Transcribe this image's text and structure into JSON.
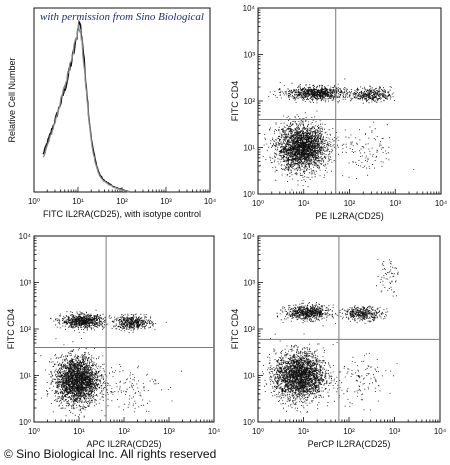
{
  "watermark": "with permission from Sino Biological",
  "footer": "© Sino Biological Inc. All rights reserved",
  "colors": {
    "axis": "#111111",
    "dots": "#111111",
    "histogram_sample": "#111111",
    "histogram_control": "#8a8a8a",
    "gate_lines": "#7a7a7a",
    "watermark": "#1d2f7a"
  },
  "chart_data": [
    {
      "type": "histogram",
      "xlabel": "FITC IL2RA(CD25), with isotype control",
      "ylabel": "Relative Cell Number",
      "xscale": "log",
      "xlim": [
        1,
        10000
      ],
      "x_ticks": [
        1,
        10,
        100,
        1000,
        10000
      ],
      "x_tick_labels": [
        "10⁰",
        "10¹",
        "10²",
        "10³",
        "10⁴"
      ],
      "series": [
        {
          "role": "sample",
          "x": [
            1.6,
            2.2,
            3,
            4,
            5.5,
            7,
            9,
            10,
            11,
            12.5,
            14,
            16,
            18,
            21,
            25,
            30,
            38,
            50,
            65,
            100,
            150
          ],
          "y": [
            0.22,
            0.32,
            0.42,
            0.52,
            0.64,
            0.76,
            0.88,
            0.97,
            1.0,
            0.9,
            0.75,
            0.58,
            0.42,
            0.28,
            0.18,
            0.11,
            0.07,
            0.05,
            0.03,
            0.015,
            0.0
          ]
        },
        {
          "role": "isotype control",
          "x": [
            1.6,
            2.2,
            3,
            4,
            5.5,
            7,
            9,
            10,
            11,
            12.5,
            14,
            16,
            18,
            21,
            25,
            30,
            38,
            50,
            65,
            100,
            150
          ],
          "y": [
            0.2,
            0.3,
            0.41,
            0.53,
            0.66,
            0.79,
            0.9,
            0.96,
            0.97,
            0.86,
            0.71,
            0.55,
            0.4,
            0.26,
            0.17,
            0.1,
            0.065,
            0.045,
            0.028,
            0.012,
            0.0
          ]
        }
      ]
    },
    {
      "type": "scatter",
      "xlabel": "PE IL2RA(CD25)",
      "ylabel": "FITC CD4",
      "xscale": "log",
      "yscale": "log",
      "xlim": [
        1,
        10000
      ],
      "ylim": [
        1,
        10000
      ],
      "tick_labels": [
        "10⁰",
        "10¹",
        "10²",
        "10³",
        "10⁴"
      ],
      "quadrant_gate": {
        "x": 50,
        "y": 40
      },
      "populations": [
        {
          "x_center": 9,
          "y_center": 10,
          "spread_log_x": 0.45,
          "spread_log_y": 0.4,
          "count": 2600
        },
        {
          "x_center": 18,
          "y_center": 150,
          "spread_log_x": 0.55,
          "spread_log_y": 0.12,
          "count": 900
        },
        {
          "x_center": 300,
          "y_center": 140,
          "spread_log_x": 0.35,
          "spread_log_y": 0.12,
          "count": 400
        },
        {
          "x_center": 200,
          "y_center": 8,
          "spread_log_x": 0.6,
          "spread_log_y": 0.45,
          "count": 120
        }
      ]
    },
    {
      "type": "scatter",
      "xlabel": "APC IL2RA(CD25)",
      "ylabel": "FITC CD4",
      "xscale": "log",
      "yscale": "log",
      "xlim": [
        1,
        10000
      ],
      "ylim": [
        1,
        10000
      ],
      "tick_labels": [
        "10⁰",
        "10¹",
        "10²",
        "10³",
        "10⁴"
      ],
      "quadrant_gate": {
        "x": 40,
        "y": 40
      },
      "populations": [
        {
          "x_center": 9,
          "y_center": 8,
          "spread_log_x": 0.4,
          "spread_log_y": 0.42,
          "count": 2600
        },
        {
          "x_center": 12,
          "y_center": 150,
          "spread_log_x": 0.4,
          "spread_log_y": 0.12,
          "count": 800
        },
        {
          "x_center": 150,
          "y_center": 140,
          "spread_log_x": 0.35,
          "spread_log_y": 0.12,
          "count": 500
        },
        {
          "x_center": 120,
          "y_center": 6,
          "spread_log_x": 0.6,
          "spread_log_y": 0.45,
          "count": 120
        }
      ]
    },
    {
      "type": "scatter",
      "xlabel": "PerCP IL2RA(CD25)",
      "ylabel": "FITC CD4",
      "xscale": "log",
      "yscale": "log",
      "xlim": [
        1,
        10000
      ],
      "ylim": [
        1,
        10000
      ],
      "tick_labels": [
        "10⁰",
        "10¹",
        "10²",
        "10³",
        "10⁴"
      ],
      "quadrant_gate": {
        "x": 60,
        "y": 60
      },
      "populations": [
        {
          "x_center": 8,
          "y_center": 10,
          "spread_log_x": 0.45,
          "spread_log_y": 0.42,
          "count": 2600
        },
        {
          "x_center": 12,
          "y_center": 230,
          "spread_log_x": 0.4,
          "spread_log_y": 0.13,
          "count": 700
        },
        {
          "x_center": 200,
          "y_center": 220,
          "spread_log_x": 0.35,
          "spread_log_y": 0.12,
          "count": 400
        },
        {
          "x_center": 700,
          "y_center": 1500,
          "spread_log_x": 0.2,
          "spread_log_y": 0.35,
          "count": 60
        },
        {
          "x_center": 150,
          "y_center": 8,
          "spread_log_x": 0.6,
          "spread_log_y": 0.45,
          "count": 120
        }
      ]
    }
  ]
}
